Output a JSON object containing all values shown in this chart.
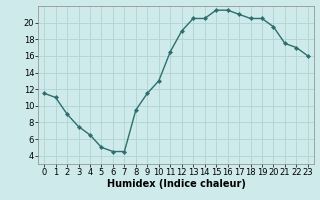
{
  "x": [
    0,
    1,
    2,
    3,
    4,
    5,
    6,
    7,
    8,
    9,
    10,
    11,
    12,
    13,
    14,
    15,
    16,
    17,
    18,
    19,
    20,
    21,
    22,
    23
  ],
  "y": [
    11.5,
    11.0,
    9.0,
    7.5,
    6.5,
    5.0,
    4.5,
    4.5,
    9.5,
    11.5,
    13.0,
    16.5,
    19.0,
    20.5,
    20.5,
    21.5,
    21.5,
    21.0,
    20.5,
    20.5,
    19.5,
    17.5,
    17.0,
    16.0
  ],
  "line_color": "#2d6e6e",
  "marker": "D",
  "marker_size": 2,
  "line_width": 1.0,
  "bg_color": "#ceeaea",
  "grid_color": "#aed4d4",
  "xlabel": "Humidex (Indice chaleur)",
  "xlim": [
    -0.5,
    23.5
  ],
  "ylim": [
    3,
    22
  ],
  "yticks": [
    4,
    6,
    8,
    10,
    12,
    14,
    16,
    18,
    20
  ],
  "xticks": [
    0,
    1,
    2,
    3,
    4,
    5,
    6,
    7,
    8,
    9,
    10,
    11,
    12,
    13,
    14,
    15,
    16,
    17,
    18,
    19,
    20,
    21,
    22,
    23
  ],
  "xlabel_fontsize": 7,
  "tick_fontsize": 6
}
